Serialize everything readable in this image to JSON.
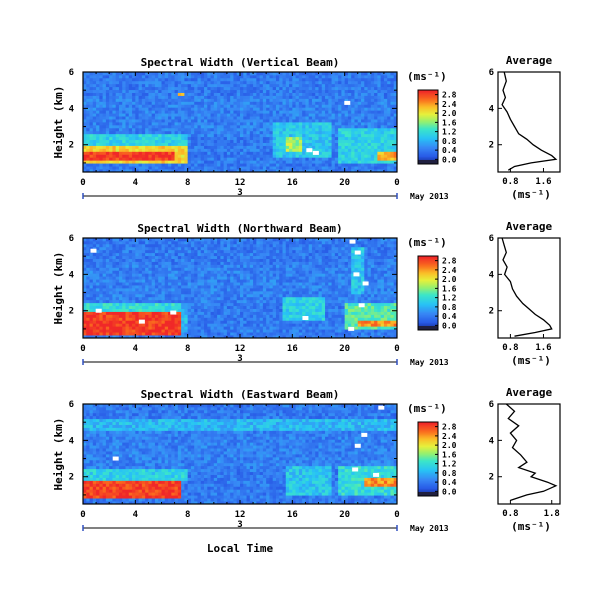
{
  "chart_data": [
    {
      "type": "heatmap",
      "title": "Spectral Width (Vertical Beam)",
      "ylabel": "Height (km)",
      "xticks": [
        "0",
        "4",
        "8",
        "12",
        "16",
        "20",
        "0"
      ],
      "yticks": [
        "2",
        "4",
        "6"
      ],
      "date_marker": "3",
      "date_label": "May 2013",
      "xlim": [
        0,
        24
      ],
      "ylim": [
        0.5,
        6
      ],
      "colorbar": {
        "unit": "(ms⁻¹)",
        "ticks": [
          "0.0",
          "0.4",
          "0.8",
          "1.2",
          "1.6",
          "2.0",
          "2.4",
          "2.8"
        ]
      },
      "regions": [
        {
          "x0": 0,
          "x1": 8,
          "y0": 1.0,
          "y1": 2.0,
          "value": 2.2
        },
        {
          "x0": 0,
          "x1": 7,
          "y0": 1.2,
          "y1": 1.7,
          "value": 2.9
        },
        {
          "x0": 0,
          "x1": 8,
          "y0": 2.0,
          "y1": 2.6,
          "value": 1.2
        },
        {
          "x0": 14.5,
          "x1": 19,
          "y0": 1.3,
          "y1": 3.3,
          "value": 1.1
        },
        {
          "x0": 15.5,
          "x1": 16.8,
          "y0": 1.6,
          "y1": 2.4,
          "value": 1.8
        },
        {
          "x0": 19.5,
          "x1": 24,
          "y0": 1.0,
          "y1": 3.0,
          "value": 1.2
        },
        {
          "x0": 22.5,
          "x1": 24,
          "y0": 1.2,
          "y1": 1.6,
          "value": 2.4
        },
        {
          "x0": 7.3,
          "x1": 7.8,
          "y0": 4.7,
          "y1": 4.9,
          "value": 2.2
        }
      ],
      "white_cells": [
        {
          "x": 20.2,
          "y": 4.3
        },
        {
          "x": 17.3,
          "y": 1.7
        },
        {
          "x": 17.8,
          "y": 1.55
        }
      ],
      "average": {
        "title": "Average",
        "unit": "(ms⁻¹)",
        "xticks": [
          "0.8",
          "1.6"
        ],
        "xlim": [
          0.5,
          2.0
        ],
        "yticks": [
          "2",
          "4",
          "6"
        ],
        "ylim": [
          0.5,
          6
        ],
        "profile": [
          [
            0.65,
            6.0
          ],
          [
            0.7,
            5.5
          ],
          [
            0.62,
            5.0
          ],
          [
            0.68,
            4.6
          ],
          [
            0.6,
            4.2
          ],
          [
            0.72,
            3.8
          ],
          [
            0.8,
            3.4
          ],
          [
            0.9,
            3.0
          ],
          [
            1.0,
            2.6
          ],
          [
            1.2,
            2.3
          ],
          [
            1.35,
            2.0
          ],
          [
            1.55,
            1.7
          ],
          [
            1.8,
            1.4
          ],
          [
            1.9,
            1.2
          ],
          [
            1.3,
            1.0
          ],
          [
            0.9,
            0.8
          ],
          [
            0.75,
            0.6
          ]
        ]
      }
    },
    {
      "type": "heatmap",
      "title": "Spectral Width (Northward Beam)",
      "ylabel": "Height (km)",
      "xticks": [
        "0",
        "4",
        "8",
        "12",
        "16",
        "20",
        "0"
      ],
      "yticks": [
        "2",
        "4",
        "6"
      ],
      "date_marker": "3",
      "date_label": "May 2013",
      "xlim": [
        0,
        24
      ],
      "ylim": [
        0.5,
        6
      ],
      "colorbar": {
        "unit": "(ms⁻¹)",
        "ticks": [
          "0.0",
          "0.4",
          "0.8",
          "1.2",
          "1.6",
          "2.0",
          "2.4",
          "2.8"
        ]
      },
      "regions": [
        {
          "x0": 0,
          "x1": 7.5,
          "y0": 0.7,
          "y1": 2.0,
          "value": 2.9
        },
        {
          "x0": 0,
          "x1": 7.5,
          "y0": 2.0,
          "y1": 2.4,
          "value": 1.3
        },
        {
          "x0": 7.5,
          "x1": 8,
          "y0": 0.8,
          "y1": 2.4,
          "value": 1.0
        },
        {
          "x0": 15.3,
          "x1": 18.5,
          "y0": 1.5,
          "y1": 2.8,
          "value": 1.2
        },
        {
          "x0": 20,
          "x1": 24,
          "y0": 1.0,
          "y1": 2.4,
          "value": 1.5
        },
        {
          "x0": 21,
          "x1": 24,
          "y0": 1.2,
          "y1": 1.5,
          "value": 2.5
        },
        {
          "x0": 20.5,
          "x1": 21.5,
          "y0": 3.0,
          "y1": 5.5,
          "value": 1.1
        }
      ],
      "white_cells": [
        {
          "x": 0.8,
          "y": 5.3
        },
        {
          "x": 20.6,
          "y": 5.8
        },
        {
          "x": 21,
          "y": 5.2
        },
        {
          "x": 20.9,
          "y": 4.0
        },
        {
          "x": 21.6,
          "y": 3.5
        },
        {
          "x": 1.2,
          "y": 2.0
        },
        {
          "x": 4.5,
          "y": 1.4
        },
        {
          "x": 17.0,
          "y": 1.6
        },
        {
          "x": 21.3,
          "y": 2.3
        },
        {
          "x": 20.5,
          "y": 1.0
        },
        {
          "x": 6.9,
          "y": 1.9
        }
      ],
      "average": {
        "title": "Average",
        "unit": "(ms⁻¹)",
        "xticks": [
          "0.8",
          "1.6"
        ],
        "xlim": [
          0.5,
          2.0
        ],
        "yticks": [
          "2",
          "4",
          "6"
        ],
        "ylim": [
          0.5,
          6
        ],
        "profile": [
          [
            0.6,
            6.0
          ],
          [
            0.65,
            5.6
          ],
          [
            0.7,
            5.2
          ],
          [
            0.62,
            4.8
          ],
          [
            0.72,
            4.4
          ],
          [
            0.66,
            4.0
          ],
          [
            0.8,
            3.6
          ],
          [
            0.85,
            3.2
          ],
          [
            0.95,
            2.8
          ],
          [
            1.1,
            2.4
          ],
          [
            1.25,
            2.1
          ],
          [
            1.4,
            1.8
          ],
          [
            1.6,
            1.5
          ],
          [
            1.75,
            1.2
          ],
          [
            1.8,
            1.0
          ],
          [
            1.4,
            0.8
          ],
          [
            0.9,
            0.6
          ]
        ]
      }
    },
    {
      "type": "heatmap",
      "title": "Spectral Width (Eastward Beam)",
      "ylabel": "Height (km)",
      "xlabel": "Local Time",
      "xticks": [
        "0",
        "4",
        "8",
        "12",
        "16",
        "20",
        "0"
      ],
      "yticks": [
        "2",
        "4",
        "6"
      ],
      "date_marker": "3",
      "date_label": "May 2013",
      "xlim": [
        0,
        24
      ],
      "ylim": [
        0.5,
        6
      ],
      "colorbar": {
        "unit": "(ms⁻¹)",
        "ticks": [
          "0.0",
          "0.4",
          "0.8",
          "1.2",
          "1.6",
          "2.0",
          "2.4",
          "2.8"
        ]
      },
      "regions": [
        {
          "x0": 0,
          "x1": 7.5,
          "y0": 0.8,
          "y1": 1.8,
          "value": 2.9
        },
        {
          "x0": 0,
          "x1": 8,
          "y0": 1.8,
          "y1": 2.4,
          "value": 1.2
        },
        {
          "x0": 15.5,
          "x1": 19,
          "y0": 1.0,
          "y1": 2.6,
          "value": 1.1
        },
        {
          "x0": 19.5,
          "x1": 24,
          "y0": 1.0,
          "y1": 2.6,
          "value": 1.3
        },
        {
          "x0": 21.5,
          "x1": 24,
          "y0": 1.5,
          "y1": 1.9,
          "value": 2.5
        },
        {
          "x0": 0,
          "x1": 24,
          "y0": 4.6,
          "y1": 5.2,
          "value": 1.0
        }
      ],
      "white_cells": [
        {
          "x": 22.8,
          "y": 5.8
        },
        {
          "x": 21.5,
          "y": 4.3
        },
        {
          "x": 21.0,
          "y": 3.7
        },
        {
          "x": 2.5,
          "y": 3.0
        },
        {
          "x": 20.8,
          "y": 2.4
        },
        {
          "x": 22.4,
          "y": 2.1
        }
      ],
      "average": {
        "title": "Average",
        "unit": "(ms⁻¹)",
        "xticks": [
          "0.8",
          "1.8"
        ],
        "xlim": [
          0.5,
          2.0
        ],
        "yticks": [
          "2",
          "4",
          "6"
        ],
        "ylim": [
          0.5,
          6
        ],
        "profile": [
          [
            0.7,
            6.0
          ],
          [
            0.9,
            5.6
          ],
          [
            0.75,
            5.2
          ],
          [
            1.0,
            4.8
          ],
          [
            0.8,
            4.4
          ],
          [
            0.95,
            4.0
          ],
          [
            0.85,
            3.6
          ],
          [
            1.05,
            3.2
          ],
          [
            1.2,
            2.8
          ],
          [
            1.0,
            2.5
          ],
          [
            1.4,
            2.2
          ],
          [
            1.3,
            2.0
          ],
          [
            1.7,
            1.7
          ],
          [
            1.9,
            1.5
          ],
          [
            1.6,
            1.2
          ],
          [
            1.2,
            1.0
          ],
          [
            0.8,
            0.7
          ]
        ]
      }
    }
  ]
}
